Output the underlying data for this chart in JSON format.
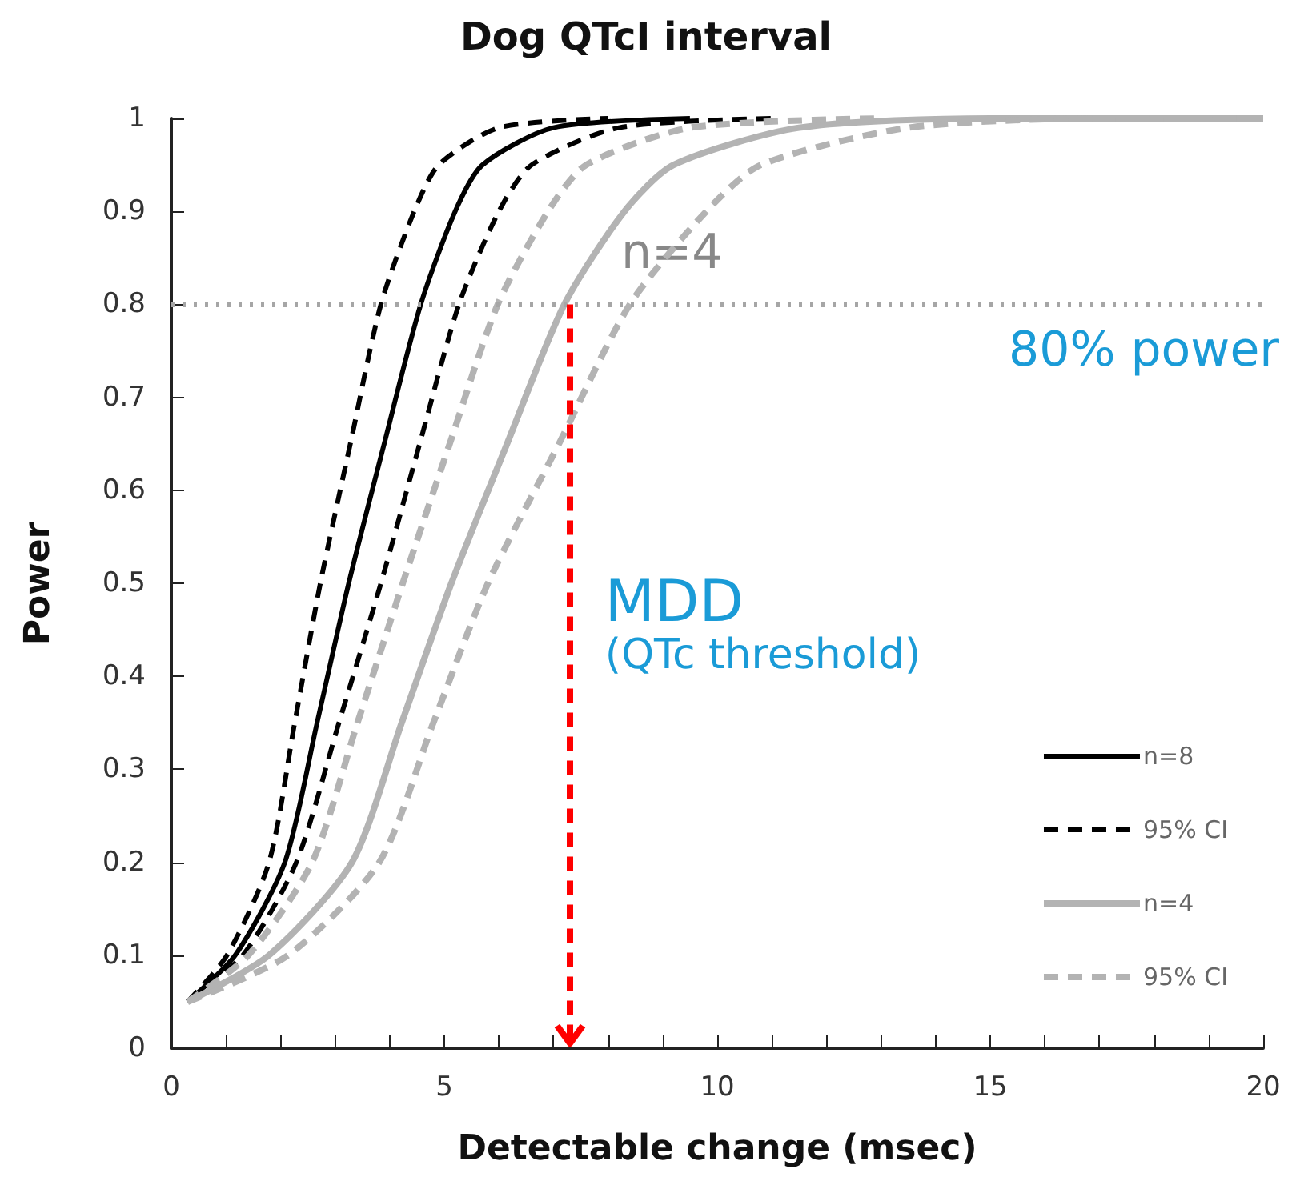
{
  "chart_data": {
    "type": "line",
    "title": "Dog QTcI interval",
    "xlabel": "Detectable change (msec)",
    "ylabel": "Power",
    "xlim": [
      0,
      20
    ],
    "ylim": [
      0,
      1
    ],
    "xticks": [
      0,
      {
        "value": 1,
        "label": null
      },
      {
        "value": 2,
        "label": null
      },
      {
        "value": 3,
        "label": null
      },
      {
        "value": 4,
        "label": null
      },
      5,
      {
        "value": 6,
        "label": null
      },
      {
        "value": 7,
        "label": null
      },
      {
        "value": 8,
        "label": null
      },
      {
        "value": 9,
        "label": null
      },
      10,
      {
        "value": 11,
        "label": null
      },
      {
        "value": 12,
        "label": null
      },
      {
        "value": 13,
        "label": null
      },
      {
        "value": 14,
        "label": null
      },
      15,
      {
        "value": 16,
        "label": null
      },
      {
        "value": 17,
        "label": null
      },
      {
        "value": 18,
        "label": null
      },
      {
        "value": 19,
        "label": null
      },
      20
    ],
    "yticks": [
      0,
      0.1,
      0.2,
      0.3,
      0.4,
      0.5,
      0.6,
      0.7,
      0.8,
      0.9,
      1
    ],
    "grid": false,
    "legend": "bottom right",
    "marker": "none",
    "series": [
      {
        "name": "n=8",
        "color": "#000000",
        "line_style": "solid",
        "x": [
          0.3,
          1.17,
          2.08,
          2.67,
          3.25,
          3.9,
          4.57,
          5.2,
          5.7,
          7,
          9.5
        ],
        "values": [
          0.05,
          0.1,
          0.2,
          0.35,
          0.5,
          0.65,
          0.8,
          0.9,
          0.95,
          0.99,
          1
        ]
      },
      {
        "name": "95% CI",
        "color": "#000000",
        "line_style": "dashed",
        "x": [
          0.3,
          1.02,
          1.79,
          2.26,
          2.73,
          3.28,
          3.84,
          4.45,
          4.9,
          6,
          8
        ],
        "values": [
          0.05,
          0.1,
          0.2,
          0.35,
          0.5,
          0.65,
          0.8,
          0.9,
          0.95,
          0.99,
          1
        ]
      },
      {
        "color": "#000000",
        "line_style": "dashed",
        "x": [
          0.3,
          1.31,
          2.29,
          3.07,
          3.84,
          4.55,
          5.27,
          6.0,
          6.6,
          8.2,
          11
        ],
        "values": [
          0.05,
          0.1,
          0.2,
          0.35,
          0.5,
          0.65,
          0.8,
          0.9,
          0.95,
          0.99,
          1
        ]
      },
      {
        "name": "n=4",
        "color": "#b3b3b3",
        "line_style": "solid",
        "x": [
          0.3,
          1.79,
          3.31,
          4.22,
          5.13,
          6.15,
          7.2,
          8.3,
          9.2,
          11.5,
          15,
          20
        ],
        "values": [
          0.05,
          0.1,
          0.2,
          0.35,
          0.5,
          0.65,
          0.8,
          0.9,
          0.95,
          0.99,
          1,
          1
        ]
      },
      {
        "name": "95% CI",
        "color": "#b3b3b3",
        "line_style": "dashed",
        "x": [
          0.3,
          1.41,
          2.58,
          3.41,
          4.24,
          5.1,
          5.98,
          6.9,
          7.6,
          9.5,
          13
        ],
        "values": [
          0.05,
          0.1,
          0.2,
          0.35,
          0.5,
          0.65,
          0.8,
          0.9,
          0.95,
          0.99,
          1
        ]
      },
      {
        "color": "#b3b3b3",
        "line_style": "dashed",
        "x": [
          0.3,
          2.14,
          3.81,
          4.8,
          5.8,
          7.1,
          8.4,
          9.8,
          10.8,
          13.5,
          17,
          20
        ],
        "values": [
          0.05,
          0.1,
          0.2,
          0.35,
          0.5,
          0.65,
          0.8,
          0.9,
          0.95,
          0.99,
          1,
          1
        ]
      }
    ],
    "ref_lines": [
      {
        "axis": "y",
        "value": 0.8,
        "label": "80% power",
        "color": "#a6a6a6",
        "line_style": "dotted"
      },
      {
        "axis": "x",
        "value": 7.3,
        "label": "MDD",
        "color": "#ff0000",
        "line_style": "dashed"
      }
    ],
    "annotations": [
      "n=4",
      "(QTc threshold)"
    ]
  }
}
